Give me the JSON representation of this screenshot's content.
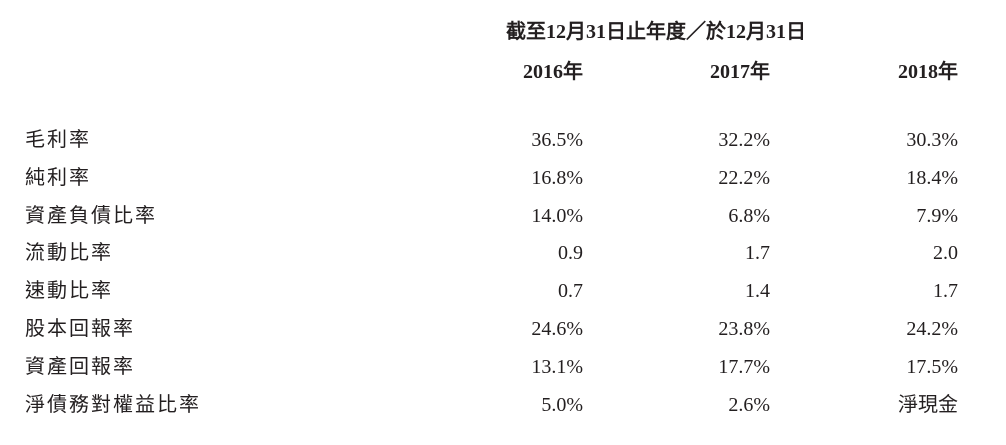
{
  "header": {
    "span": "截至12月31日止年度／於12月31日",
    "columns": [
      "2016年",
      "2017年",
      "2018年"
    ]
  },
  "table": {
    "rows": [
      [
        "毛利率",
        "36.5%",
        "32.2%",
        "30.3%"
      ],
      [
        "純利率",
        "16.8%",
        "22.2%",
        "18.4%"
      ],
      [
        "資產負債比率",
        "14.0%",
        "6.8%",
        "7.9%"
      ],
      [
        "流動比率",
        "0.9",
        "1.7",
        "2.0"
      ],
      [
        "速動比率",
        "0.7",
        "1.4",
        "1.7"
      ],
      [
        "股本回報率",
        "24.6%",
        "23.8%",
        "24.2%"
      ],
      [
        "資產回報率",
        "13.1%",
        "17.7%",
        "17.5%"
      ],
      [
        "淨債務對權益比率",
        "5.0%",
        "2.6%",
        "淨現金"
      ]
    ]
  }
}
